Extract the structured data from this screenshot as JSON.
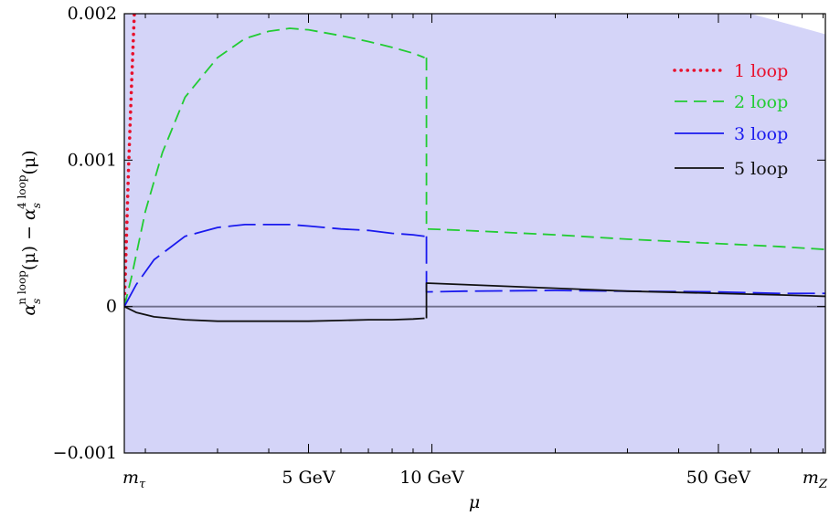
{
  "chart_data": {
    "type": "line",
    "title": "",
    "xlabel": "μ",
    "ylabel_parts": {
      "base1": "α",
      "sub1": "s",
      "sup1": "n loop",
      "arg1": "(μ) − ",
      "base2": "α",
      "sub2": "s",
      "sup2": "4 loop",
      "arg2": "(μ)"
    },
    "x_scale": "log",
    "xlim": [
      1.777,
      91.19
    ],
    "ylim": [
      -0.001,
      0.002
    ],
    "y_ticks": [
      -0.001,
      0,
      0.001,
      0.002
    ],
    "y_tick_labels": [
      "−0.001",
      "0",
      "0.001",
      "0.002"
    ],
    "x_ticks": [
      1.777,
      5,
      10,
      50,
      91.19
    ],
    "x_tick_labels": [
      {
        "main": "m",
        "sub": "τ"
      },
      {
        "main": "5 GeV",
        "sub": ""
      },
      {
        "main": "10 GeV",
        "sub": ""
      },
      {
        "main": "50 GeV",
        "sub": ""
      },
      {
        "main": "m",
        "sub": "Z"
      }
    ],
    "x_minor_ticks": [
      2,
      3,
      4,
      6,
      7,
      8,
      9,
      20,
      30,
      40,
      60,
      70,
      80,
      90
    ],
    "threshold_x": 9.7,
    "band": {
      "color": "#d4d4f8",
      "lower": -0.001,
      "upper": {
        "x": [
          1.777,
          60,
          91.19
        ],
        "y": [
          0.002,
          0.002,
          0.00186
        ]
      }
    },
    "zero_line_color": "#6f6f8c",
    "legend_position": "top-right",
    "series": [
      {
        "name": "1 loop",
        "color": "#e8102c",
        "style": "dotted",
        "x": [
          1.777,
          1.8,
          1.82,
          1.85,
          1.88
        ],
        "y": [
          0,
          0.0005,
          0.00095,
          0.0015,
          0.002
        ]
      },
      {
        "name": "2 loop",
        "color": "#22cc33",
        "style": "dashed",
        "x": [
          1.777,
          1.85,
          2.0,
          2.2,
          2.5,
          3.0,
          3.5,
          4.0,
          4.5,
          5.0,
          6.0,
          7.0,
          8.0,
          9.0,
          9.6,
          null,
          9.7,
          12,
          20,
          30,
          50,
          70,
          91.19
        ],
        "y": [
          0,
          0.0002,
          0.00065,
          0.00105,
          0.00143,
          0.0017,
          0.00183,
          0.00188,
          0.0019,
          0.00189,
          0.00185,
          0.00181,
          0.00177,
          0.00173,
          0.0017,
          null,
          0.00053,
          0.00052,
          0.00049,
          0.00046,
          0.00043,
          0.00041,
          0.00039
        ]
      },
      {
        "name": "3 loop",
        "color": "#1a1aee",
        "style": "longdash",
        "x": [
          1.777,
          1.9,
          2.1,
          2.5,
          3.0,
          3.5,
          4.0,
          4.5,
          5.0,
          6.0,
          7.0,
          8.0,
          9.0,
          9.6,
          null,
          9.7,
          12,
          20,
          30,
          50,
          70,
          91.19
        ],
        "y": [
          0,
          0.00015,
          0.00032,
          0.00048,
          0.00054,
          0.00056,
          0.00056,
          0.00056,
          0.00055,
          0.00053,
          0.00052,
          0.0005,
          0.00049,
          0.00048,
          null,
          0.0001,
          0.000105,
          0.00011,
          0.000105,
          0.0001,
          9e-05,
          9e-05
        ]
      },
      {
        "name": "5 loop",
        "color": "#111111",
        "style": "solid",
        "x": [
          1.777,
          1.9,
          2.1,
          2.5,
          3.0,
          3.5,
          4.0,
          5.0,
          6.0,
          7.0,
          8.0,
          9.0,
          9.6,
          null,
          9.7,
          12,
          20,
          30,
          50,
          70,
          91.19
        ],
        "y": [
          0,
          -4e-05,
          -7e-05,
          -9e-05,
          -0.0001,
          -0.0001,
          -0.0001,
          -0.0001,
          -9.5e-05,
          -9e-05,
          -9e-05,
          -8.5e-05,
          -8e-05,
          null,
          0.00016,
          0.00015,
          0.000125,
          0.000105,
          9e-05,
          8e-05,
          7e-05
        ]
      }
    ]
  }
}
